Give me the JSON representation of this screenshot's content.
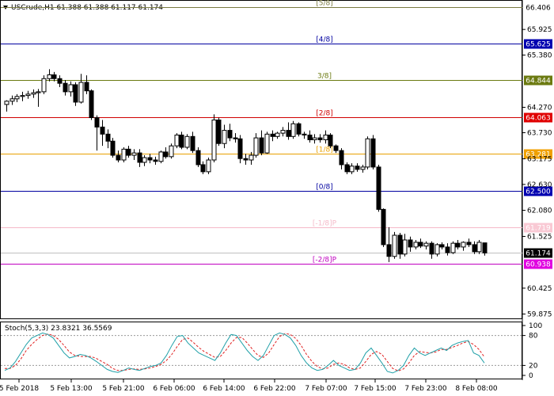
{
  "window": {
    "symbol_header": "USCrude,H1  61.388 61.388 61.117 61.174",
    "stoch_header": "Stoch(5,3,3) 23.8321 36.5569"
  },
  "chart_data": {
    "type": "candlestick",
    "symbol": "USCrude",
    "timeframe": "H1",
    "ylim": [
      59.85,
      66.45
    ],
    "price_ticks": [
      "65.925",
      "65.380",
      "64.270",
      "63.730",
      "63.175",
      "62.630",
      "62.080",
      "61.525",
      "60.425",
      "59.875"
    ],
    "time_ticks": [
      "5 Feb 2018",
      "5 Feb 13:00",
      "5 Feb 21:00",
      "6 Feb 06:00",
      "6 Feb 14:00",
      "6 Feb 22:00",
      "7 Feb 07:00",
      "7 Feb 15:00",
      "7 Feb 23:00",
      "8 Feb 08:00"
    ],
    "murrey_levels": [
      {
        "label": "[5/8]",
        "value": "66.406",
        "level": 66.406,
        "color": "#7a7a40",
        "box": "#ffffff",
        "box_text": "#000000"
      },
      {
        "label": "[4/8]",
        "value": "65.625",
        "level": 65.625,
        "color": "#0000a0",
        "box": "#0000b0",
        "box_text": "#ffffff"
      },
      {
        "label": "3/8]",
        "value": "64.844",
        "level": 64.844,
        "color": "#6b7a10",
        "box": "#6b7a10",
        "box_text": "#ffffff"
      },
      {
        "label": "[2/8]",
        "value": "64.063",
        "level": 64.063,
        "color": "#d00000",
        "box": "#e00000",
        "box_text": "#ffffff"
      },
      {
        "label": "[1/8]",
        "value": "63.281",
        "level": 63.281,
        "color": "#e8a000",
        "box": "#f0a000",
        "box_text": "#ffffff"
      },
      {
        "label": "[0/8]",
        "value": "62.500",
        "level": 62.5,
        "color": "#0000a0",
        "box": "#0000b0",
        "box_text": "#ffffff"
      },
      {
        "label": "[-1/8]P",
        "value": "61.719",
        "level": 61.719,
        "color": "#f5b8c8",
        "box": "#f9c9d4",
        "box_text": "#ffffff"
      },
      {
        "label": "[-2/8]P",
        "value": "60.938",
        "level": 60.938,
        "color": "#c000c0",
        "box": "#e000e0",
        "box_text": "#ffffff"
      }
    ],
    "current_price": {
      "value": "61.174",
      "level": 61.174
    },
    "candles": [
      {
        "o": 64.33,
        "h": 64.42,
        "l": 64.18,
        "c": 64.4
      },
      {
        "o": 64.4,
        "h": 64.52,
        "l": 64.32,
        "c": 64.45
      },
      {
        "o": 64.45,
        "h": 64.55,
        "l": 64.38,
        "c": 64.5
      },
      {
        "o": 64.5,
        "h": 64.6,
        "l": 64.4,
        "c": 64.52
      },
      {
        "o": 64.52,
        "h": 64.62,
        "l": 64.45,
        "c": 64.55
      },
      {
        "o": 64.55,
        "h": 64.65,
        "l": 64.47,
        "c": 64.58
      },
      {
        "o": 64.58,
        "h": 64.66,
        "l": 64.28,
        "c": 64.6
      },
      {
        "o": 64.6,
        "h": 64.95,
        "l": 64.55,
        "c": 64.88
      },
      {
        "o": 64.88,
        "h": 65.08,
        "l": 64.82,
        "c": 64.96
      },
      {
        "o": 64.96,
        "h": 65.02,
        "l": 64.82,
        "c": 64.88
      },
      {
        "o": 64.88,
        "h": 64.95,
        "l": 64.7,
        "c": 64.78
      },
      {
        "o": 64.78,
        "h": 64.85,
        "l": 64.52,
        "c": 64.6
      },
      {
        "o": 64.6,
        "h": 64.82,
        "l": 64.5,
        "c": 64.75
      },
      {
        "o": 64.75,
        "h": 64.8,
        "l": 64.3,
        "c": 64.38
      },
      {
        "o": 64.38,
        "h": 64.98,
        "l": 64.35,
        "c": 64.8
      },
      {
        "o": 64.8,
        "h": 64.95,
        "l": 64.55,
        "c": 64.62
      },
      {
        "o": 64.62,
        "h": 64.65,
        "l": 64.0,
        "c": 64.05
      },
      {
        "o": 64.05,
        "h": 64.1,
        "l": 63.35,
        "c": 63.85
      },
      {
        "o": 63.85,
        "h": 64.0,
        "l": 63.45,
        "c": 63.7
      },
      {
        "o": 63.7,
        "h": 63.8,
        "l": 63.4,
        "c": 63.55
      },
      {
        "o": 63.55,
        "h": 63.62,
        "l": 63.2,
        "c": 63.25
      },
      {
        "o": 63.25,
        "h": 63.35,
        "l": 63.1,
        "c": 63.15
      },
      {
        "o": 63.15,
        "h": 63.42,
        "l": 63.1,
        "c": 63.38
      },
      {
        "o": 63.38,
        "h": 63.45,
        "l": 63.2,
        "c": 63.25
      },
      {
        "o": 63.25,
        "h": 63.38,
        "l": 63.15,
        "c": 63.3
      },
      {
        "o": 63.3,
        "h": 63.38,
        "l": 63.0,
        "c": 63.1
      },
      {
        "o": 63.1,
        "h": 63.25,
        "l": 63.02,
        "c": 63.2
      },
      {
        "o": 63.2,
        "h": 63.28,
        "l": 63.08,
        "c": 63.15
      },
      {
        "o": 63.15,
        "h": 63.22,
        "l": 63.05,
        "c": 63.12
      },
      {
        "o": 63.12,
        "h": 63.35,
        "l": 63.08,
        "c": 63.32
      },
      {
        "o": 63.32,
        "h": 63.42,
        "l": 63.18,
        "c": 63.22
      },
      {
        "o": 63.22,
        "h": 63.5,
        "l": 63.18,
        "c": 63.45
      },
      {
        "o": 63.45,
        "h": 63.72,
        "l": 63.4,
        "c": 63.68
      },
      {
        "o": 63.68,
        "h": 63.75,
        "l": 63.38,
        "c": 63.42
      },
      {
        "o": 63.42,
        "h": 63.7,
        "l": 63.38,
        "c": 63.65
      },
      {
        "o": 63.65,
        "h": 63.75,
        "l": 63.3,
        "c": 63.35
      },
      {
        "o": 63.35,
        "h": 63.42,
        "l": 63.0,
        "c": 63.05
      },
      {
        "o": 63.05,
        "h": 63.12,
        "l": 62.85,
        "c": 62.9
      },
      {
        "o": 62.9,
        "h": 63.2,
        "l": 62.85,
        "c": 63.15
      },
      {
        "o": 63.15,
        "h": 64.12,
        "l": 63.1,
        "c": 64.0
      },
      {
        "o": 64.0,
        "h": 64.05,
        "l": 63.45,
        "c": 63.5
      },
      {
        "o": 63.5,
        "h": 63.9,
        "l": 63.4,
        "c": 63.78
      },
      {
        "o": 63.78,
        "h": 63.92,
        "l": 63.55,
        "c": 63.62
      },
      {
        "o": 63.62,
        "h": 63.72,
        "l": 63.52,
        "c": 63.6
      },
      {
        "o": 63.6,
        "h": 63.68,
        "l": 63.08,
        "c": 63.18
      },
      {
        "o": 63.18,
        "h": 63.28,
        "l": 63.05,
        "c": 63.15
      },
      {
        "o": 63.15,
        "h": 63.32,
        "l": 63.05,
        "c": 63.25
      },
      {
        "o": 63.25,
        "h": 63.72,
        "l": 63.2,
        "c": 63.62
      },
      {
        "o": 63.62,
        "h": 63.78,
        "l": 63.25,
        "c": 63.3
      },
      {
        "o": 63.3,
        "h": 63.75,
        "l": 63.28,
        "c": 63.7
      },
      {
        "o": 63.7,
        "h": 63.78,
        "l": 63.55,
        "c": 63.65
      },
      {
        "o": 63.65,
        "h": 63.75,
        "l": 63.6,
        "c": 63.72
      },
      {
        "o": 63.72,
        "h": 63.85,
        "l": 63.65,
        "c": 63.78
      },
      {
        "o": 63.78,
        "h": 63.95,
        "l": 63.58,
        "c": 63.65
      },
      {
        "o": 63.65,
        "h": 63.98,
        "l": 63.6,
        "c": 63.92
      },
      {
        "o": 63.92,
        "h": 63.95,
        "l": 63.65,
        "c": 63.7
      },
      {
        "o": 63.7,
        "h": 63.75,
        "l": 63.6,
        "c": 63.68
      },
      {
        "o": 63.68,
        "h": 63.78,
        "l": 63.52,
        "c": 63.58
      },
      {
        "o": 63.58,
        "h": 63.7,
        "l": 63.5,
        "c": 63.62
      },
      {
        "o": 63.62,
        "h": 63.7,
        "l": 63.52,
        "c": 63.58
      },
      {
        "o": 63.58,
        "h": 63.78,
        "l": 63.5,
        "c": 63.68
      },
      {
        "o": 63.68,
        "h": 63.72,
        "l": 63.4,
        "c": 63.45
      },
      {
        "o": 63.45,
        "h": 63.48,
        "l": 63.3,
        "c": 63.35
      },
      {
        "o": 63.35,
        "h": 63.4,
        "l": 62.95,
        "c": 63.05
      },
      {
        "o": 63.05,
        "h": 63.1,
        "l": 62.85,
        "c": 62.9
      },
      {
        "o": 62.9,
        "h": 63.08,
        "l": 62.85,
        "c": 63.02
      },
      {
        "o": 63.02,
        "h": 63.08,
        "l": 62.9,
        "c": 62.95
      },
      {
        "o": 62.95,
        "h": 63.05,
        "l": 62.88,
        "c": 63.0
      },
      {
        "o": 63.0,
        "h": 63.65,
        "l": 62.95,
        "c": 63.6
      },
      {
        "o": 63.6,
        "h": 63.68,
        "l": 62.95,
        "c": 63.0
      },
      {
        "o": 63.0,
        "h": 63.05,
        "l": 62.05,
        "c": 62.1
      },
      {
        "o": 62.1,
        "h": 62.12,
        "l": 61.3,
        "c": 61.35
      },
      {
        "o": 61.35,
        "h": 61.72,
        "l": 60.98,
        "c": 61.1
      },
      {
        "o": 61.1,
        "h": 61.62,
        "l": 61.05,
        "c": 61.55
      },
      {
        "o": 61.55,
        "h": 61.6,
        "l": 61.05,
        "c": 61.15
      },
      {
        "o": 61.15,
        "h": 61.58,
        "l": 61.1,
        "c": 61.45
      },
      {
        "o": 61.45,
        "h": 61.52,
        "l": 61.2,
        "c": 61.3
      },
      {
        "o": 61.3,
        "h": 61.45,
        "l": 61.25,
        "c": 61.4
      },
      {
        "o": 61.4,
        "h": 61.48,
        "l": 61.28,
        "c": 61.32
      },
      {
        "o": 61.32,
        "h": 61.42,
        "l": 61.25,
        "c": 61.38
      },
      {
        "o": 61.38,
        "h": 61.42,
        "l": 61.05,
        "c": 61.15
      },
      {
        "o": 61.15,
        "h": 61.38,
        "l": 61.1,
        "c": 61.35
      },
      {
        "o": 61.35,
        "h": 61.4,
        "l": 61.25,
        "c": 61.3
      },
      {
        "o": 61.3,
        "h": 61.38,
        "l": 61.12,
        "c": 61.18
      },
      {
        "o": 61.18,
        "h": 61.42,
        "l": 61.15,
        "c": 61.38
      },
      {
        "o": 61.38,
        "h": 61.45,
        "l": 61.25,
        "c": 61.3
      },
      {
        "o": 61.3,
        "h": 61.42,
        "l": 61.22,
        "c": 61.4
      },
      {
        "o": 61.4,
        "h": 61.48,
        "l": 61.3,
        "c": 61.35
      },
      {
        "o": 61.35,
        "h": 61.42,
        "l": 61.15,
        "c": 61.2
      },
      {
        "o": 61.2,
        "h": 61.45,
        "l": 61.15,
        "c": 61.4
      },
      {
        "o": 61.388,
        "h": 61.388,
        "l": 61.117,
        "c": 61.174
      }
    ],
    "stochastic": {
      "name": "Stoch(5,3,3)",
      "main_value": "23.8321",
      "signal_value": "36.5569",
      "ylim": [
        0,
        100
      ],
      "levels": [
        80,
        20
      ],
      "ticks": [
        "100",
        "80",
        "20",
        "0"
      ],
      "main_color": "#20a0a8",
      "signal_color": "#e02020",
      "main": [
        10,
        15,
        28,
        45,
        62,
        75,
        80,
        85,
        82,
        75,
        60,
        45,
        35,
        38,
        42,
        40,
        35,
        28,
        20,
        12,
        8,
        6,
        10,
        15,
        12,
        10,
        14,
        18,
        20,
        25,
        40,
        60,
        78,
        80,
        65,
        55,
        45,
        40,
        35,
        30,
        45,
        65,
        82,
        80,
        65,
        50,
        38,
        30,
        40,
        60,
        80,
        85,
        82,
        75,
        60,
        40,
        25,
        15,
        10,
        12,
        20,
        30,
        20,
        15,
        10,
        12,
        25,
        45,
        55,
        40,
        25,
        8,
        5,
        10,
        20,
        40,
        55,
        45,
        40,
        45,
        50,
        55,
        50,
        60,
        65,
        68,
        70,
        45,
        40,
        25
      ],
      "signal": [
        14,
        14,
        20,
        33,
        50,
        62,
        72,
        80,
        83,
        80,
        72,
        60,
        47,
        40,
        38,
        38,
        38,
        34,
        28,
        22,
        14,
        10,
        10,
        12,
        13,
        12,
        13,
        15,
        18,
        22,
        30,
        42,
        58,
        72,
        75,
        66,
        56,
        48,
        42,
        36,
        38,
        50,
        65,
        76,
        76,
        65,
        52,
        40,
        36,
        45,
        62,
        78,
        84,
        82,
        74,
        60,
        42,
        28,
        18,
        13,
        15,
        22,
        25,
        22,
        15,
        12,
        15,
        28,
        42,
        48,
        42,
        28,
        14,
        9,
        13,
        25,
        40,
        48,
        46,
        45,
        47,
        52,
        52,
        56,
        60,
        65,
        68,
        62,
        52,
        37
      ]
    }
  }
}
